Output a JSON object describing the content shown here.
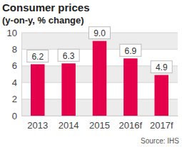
{
  "chart_data": {
    "type": "bar",
    "title": "Consumer prices",
    "subtitle": "(y-on-y, % change)",
    "categories": [
      "2013",
      "2014",
      "2015",
      "2016f",
      "2017f"
    ],
    "values": [
      6.2,
      6.3,
      9.0,
      6.9,
      4.9
    ],
    "value_labels": [
      "6.2",
      "6.3",
      "9.0",
      "6.9",
      "4.9"
    ],
    "color": "#e4004b",
    "ylim": [
      0,
      10
    ],
    "yticks": [
      0,
      2,
      4,
      6,
      8,
      10
    ],
    "grid": true,
    "data_labels": true,
    "annotations": [
      "Source: IHS"
    ]
  }
}
